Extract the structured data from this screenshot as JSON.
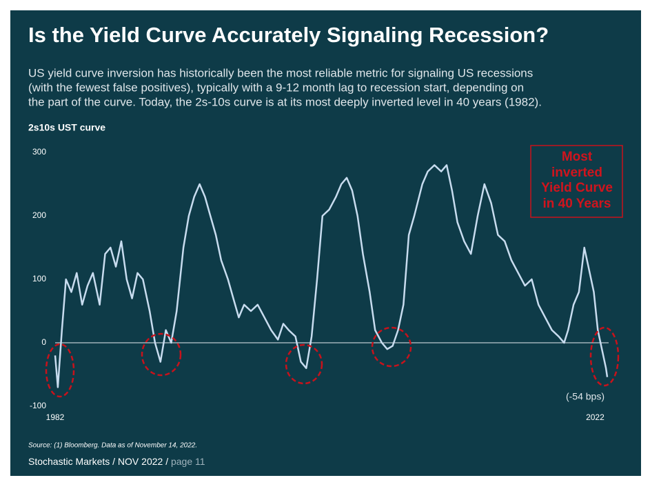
{
  "title": "Is the Yield Curve Accurately Signaling Recession?",
  "subtitle_lines": [
    "US yield curve inversion has historically been the most reliable metric for signaling US recessions",
    "(with the fewest false positives), typically with a 9-12 month lag to recession start, depending on",
    "the part of the curve.  Today, the 2s-10s curve is at its most deeply inverted level in 40 years (1982)."
  ],
  "source": "Source: (1) Bloomberg. Data as of November 14, 2022.",
  "footer": {
    "main": "Stochastic Markets / NOV 2022 /",
    "page": "page 11"
  },
  "chart_data": {
    "type": "line",
    "y_label": "2s10s UST curve",
    "color": "#c8dcef",
    "annotation_box_lines": [
      "Most",
      "inverted",
      "Yield Curve",
      "in 40 Years"
    ],
    "annotation_latest": "(-54 bps)",
    "xlim": [
      1982,
      2023
    ],
    "xticks": [
      1982,
      2022
    ],
    "ylim": [
      -100,
      300
    ],
    "yticks": [
      -100,
      0,
      100,
      200,
      300
    ],
    "grid": false,
    "x": [
      1982.0,
      1982.2,
      1982.5,
      1982.8,
      1983.2,
      1983.6,
      1984.0,
      1984.4,
      1984.8,
      1985.3,
      1985.7,
      1986.1,
      1986.5,
      1986.9,
      1987.3,
      1987.7,
      1988.1,
      1988.5,
      1989.0,
      1989.4,
      1989.8,
      1990.2,
      1990.6,
      1991.0,
      1991.5,
      1991.9,
      1992.3,
      1992.7,
      1993.1,
      1993.5,
      1993.9,
      1994.3,
      1994.8,
      1995.2,
      1995.6,
      1996.0,
      1996.5,
      1997.0,
      1997.5,
      1998.0,
      1998.5,
      1998.9,
      1999.3,
      1999.8,
      2000.2,
      2000.6,
      2001.0,
      2001.4,
      2001.8,
      2002.3,
      2002.8,
      2003.2,
      2003.6,
      2004.0,
      2004.4,
      2004.8,
      2005.3,
      2005.7,
      2006.2,
      2006.6,
      2007.0,
      2007.4,
      2007.8,
      2008.2,
      2008.6,
      2009.2,
      2009.6,
      2010.1,
      2010.6,
      2011.0,
      2011.4,
      2011.8,
      2012.3,
      2012.8,
      2013.3,
      2013.8,
      2014.3,
      2014.8,
      2015.3,
      2015.8,
      2016.3,
      2016.8,
      2017.3,
      2017.8,
      2018.3,
      2018.8,
      2019.3,
      2019.7,
      2020.0,
      2020.4,
      2020.8,
      2021.2,
      2021.6,
      2021.9,
      2022.2,
      2022.5,
      2022.8,
      2022.9
    ],
    "values": [
      -20,
      -70,
      20,
      100,
      80,
      110,
      60,
      90,
      110,
      60,
      140,
      150,
      120,
      160,
      100,
      70,
      110,
      100,
      50,
      0,
      -30,
      20,
      0,
      50,
      150,
      200,
      230,
      250,
      230,
      200,
      170,
      130,
      100,
      70,
      40,
      60,
      50,
      60,
      40,
      20,
      5,
      30,
      20,
      10,
      -30,
      -40,
      10,
      100,
      200,
      210,
      230,
      250,
      260,
      240,
      200,
      140,
      80,
      20,
      0,
      -10,
      -5,
      20,
      60,
      170,
      200,
      250,
      270,
      280,
      270,
      280,
      240,
      190,
      160,
      140,
      200,
      250,
      220,
      170,
      160,
      130,
      110,
      90,
      100,
      60,
      40,
      20,
      10,
      0,
      20,
      60,
      80,
      150,
      110,
      80,
      20,
      -10,
      -40,
      -54
    ]
  }
}
